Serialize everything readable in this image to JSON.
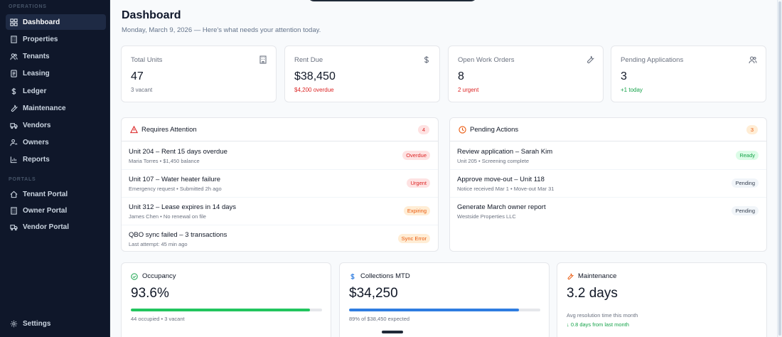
{
  "sidebar": {
    "section_operations": "OPERATIONS",
    "section_portals": "PORTALS",
    "items": [
      {
        "label": "Dashboard",
        "icon": "dashboard-icon"
      },
      {
        "label": "Properties",
        "icon": "building-icon"
      },
      {
        "label": "Tenants",
        "icon": "users-icon"
      },
      {
        "label": "Leasing",
        "icon": "document-icon"
      },
      {
        "label": "Ledger",
        "icon": "dollar-icon"
      },
      {
        "label": "Maintenance",
        "icon": "wrench-icon"
      },
      {
        "label": "Vendors",
        "icon": "truck-icon"
      },
      {
        "label": "Owners",
        "icon": "user-key-icon"
      },
      {
        "label": "Reports",
        "icon": "chart-icon"
      }
    ],
    "portals": [
      {
        "label": "Tenant Portal",
        "icon": "home-icon"
      },
      {
        "label": "Owner Portal",
        "icon": "building-icon"
      },
      {
        "label": "Vendor Portal",
        "icon": "truck-icon"
      }
    ],
    "settings_label": "Settings"
  },
  "header": {
    "title": "Dashboard",
    "subtitle": "Monday, March 9, 2026 — Here's what needs your attention today."
  },
  "stats": [
    {
      "label": "Total Units",
      "value": "47",
      "note": "3 vacant",
      "icon": "building-icon"
    },
    {
      "label": "Rent Due",
      "value": "$38,450",
      "note": "$4,200 overdue",
      "icon": "dollar-icon"
    },
    {
      "label": "Open Work Orders",
      "value": "8",
      "note": "2 urgent",
      "icon": "wrench-icon"
    },
    {
      "label": "Pending Applications",
      "value": "3",
      "note": "+1 today",
      "icon": "users-icon"
    }
  ],
  "attention": {
    "title": "Requires Attention",
    "count": "4",
    "items": [
      {
        "title": "Unit 204 – Rent 15 days overdue",
        "sub": "Maria Torres • $1,450 balance",
        "tag": "Overdue"
      },
      {
        "title": "Unit 107 – Water heater failure",
        "sub": "Emergency request • Submitted 2h ago",
        "tag": "Urgent"
      },
      {
        "title": "Unit 312 – Lease expires in 14 days",
        "sub": "James Chen • No renewal on file",
        "tag": "Expiring"
      },
      {
        "title": "QBO sync failed – 3 transactions",
        "sub": "Last attempt: 45 min ago",
        "tag": "Sync Error"
      }
    ]
  },
  "pending": {
    "title": "Pending Actions",
    "count": "3",
    "items": [
      {
        "title": "Review application – Sarah Kim",
        "sub": "Unit 205 • Screening complete",
        "tag": "Ready"
      },
      {
        "title": "Approve move-out – Unit 118",
        "sub": "Notice received Mar 1 • Move-out Mar 31",
        "tag": "Pending"
      },
      {
        "title": "Generate March owner report",
        "sub": "Westside Properties LLC",
        "tag": "Pending"
      }
    ]
  },
  "kpis": [
    {
      "title": "Occupancy",
      "value": "93.6%",
      "note": "44 occupied • 3 vacant",
      "progress": 0.936,
      "color": "#22c55e"
    },
    {
      "title": "Collections MTD",
      "value": "$34,250",
      "note": "89% of $38,450 expected",
      "progress": 0.89,
      "color": "#2f7de1"
    },
    {
      "title": "Maintenance",
      "value": "3.2 days",
      "note": "Avg resolution time this month",
      "trend": "↓ 0.8 days from last month"
    }
  ],
  "colors": {
    "red": "#dc2626",
    "orange": "#ea580c",
    "green": "#16a34a",
    "blue": "#2f7de1"
  }
}
